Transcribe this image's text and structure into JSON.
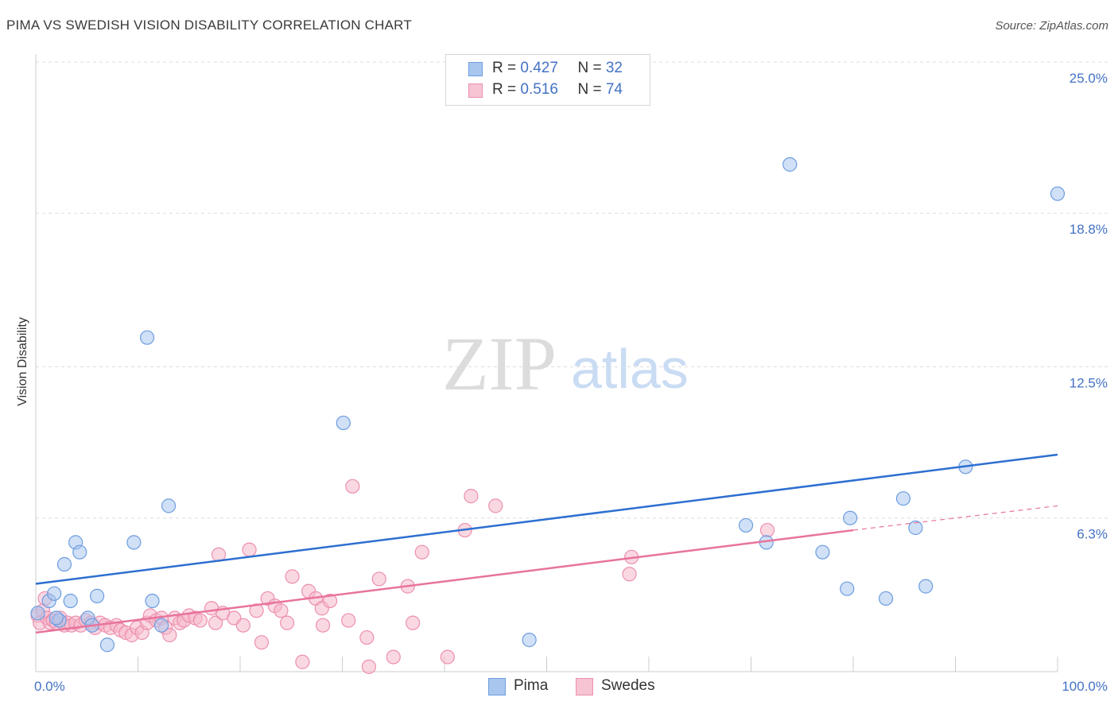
{
  "title": "PIMA VS SWEDISH VISION DISABILITY CORRELATION CHART",
  "source": "Source: ZipAtlas.com",
  "watermark": {
    "zip": "ZIP",
    "atlas": "atlas"
  },
  "legend": {
    "pima": {
      "r_label": "R = ",
      "r_value": "0.427",
      "n_label": "N = ",
      "n_value": "32"
    },
    "swedes": {
      "r_label": "R = ",
      "r_value": "0.516",
      "n_label": "N = ",
      "n_value": "74"
    }
  },
  "bottom_legend": {
    "pima": "Pima",
    "swedes": "Swedes"
  },
  "colors": {
    "pima_fill": "#a9c6ef",
    "pima_stroke": "#6d9de0",
    "pima_line": "#2d6fd0",
    "swedes_fill": "#f6b8cb",
    "swedes_stroke": "#ec8fae",
    "swedes_line": "#e8739b",
    "tick_text": "#4472c4",
    "grid": "#dddddd"
  },
  "chart_data": {
    "type": "scatter",
    "title": "PIMA VS SWEDISH VISION DISABILITY CORRELATION CHART",
    "xlabel": "",
    "ylabel": "Vision Disability",
    "xlim": [
      0,
      100
    ],
    "ylim": [
      0,
      25.0
    ],
    "x_ticks": [
      "0.0%",
      "100.0%"
    ],
    "y_ticks": [
      {
        "value": 6.3,
        "label": "6.3%"
      },
      {
        "value": 12.5,
        "label": "12.5%"
      },
      {
        "value": 18.8,
        "label": "18.8%"
      },
      {
        "value": 25.0,
        "label": "25.0%"
      }
    ],
    "grid": true,
    "series": [
      {
        "name": "Pima",
        "trend": {
          "x": [
            0,
            100
          ],
          "y": [
            3.6,
            8.9
          ]
        },
        "points": [
          [
            0.2,
            2.4
          ],
          [
            1.3,
            2.9
          ],
          [
            1.8,
            3.2
          ],
          [
            2.3,
            2.1
          ],
          [
            3.4,
            2.9
          ],
          [
            2.8,
            4.4
          ],
          [
            3.9,
            5.3
          ],
          [
            4.3,
            4.9
          ],
          [
            5.1,
            2.2
          ],
          [
            5.5,
            1.9
          ],
          [
            6.0,
            3.1
          ],
          [
            7.0,
            1.1
          ],
          [
            9.6,
            5.3
          ],
          [
            10.9,
            13.7
          ],
          [
            11.4,
            2.9
          ],
          [
            12.3,
            1.9
          ],
          [
            13.0,
            6.8
          ],
          [
            30.1,
            10.2
          ],
          [
            48.3,
            1.3
          ],
          [
            69.5,
            6.0
          ],
          [
            71.5,
            5.3
          ],
          [
            73.8,
            20.8
          ],
          [
            77.0,
            4.9
          ],
          [
            79.4,
            3.4
          ],
          [
            79.7,
            6.3
          ],
          [
            83.2,
            3.0
          ],
          [
            84.9,
            7.1
          ],
          [
            86.1,
            5.9
          ],
          [
            87.1,
            3.5
          ],
          [
            91.0,
            8.4
          ],
          [
            100.0,
            19.6
          ],
          [
            2.0,
            2.2
          ]
        ]
      },
      {
        "name": "Swedes",
        "trend": {
          "x": [
            0,
            80
          ],
          "y": [
            1.6,
            5.8
          ]
        },
        "trend_extension": {
          "x": [
            80,
            100
          ],
          "y": [
            5.8,
            6.8
          ]
        },
        "points": [
          [
            0.2,
            2.3
          ],
          [
            0.4,
            2.0
          ],
          [
            0.7,
            2.5
          ],
          [
            0.9,
            3.0
          ],
          [
            1.1,
            2.2
          ],
          [
            1.4,
            2.0
          ],
          [
            1.7,
            2.1
          ],
          [
            2.0,
            2.0
          ],
          [
            2.4,
            2.2
          ],
          [
            2.8,
            1.9
          ],
          [
            3.1,
            2.0
          ],
          [
            3.5,
            1.9
          ],
          [
            3.9,
            2.0
          ],
          [
            4.4,
            1.9
          ],
          [
            4.9,
            2.1
          ],
          [
            5.4,
            2.0
          ],
          [
            5.8,
            1.8
          ],
          [
            6.3,
            2.0
          ],
          [
            6.8,
            1.9
          ],
          [
            7.3,
            1.8
          ],
          [
            7.9,
            1.9
          ],
          [
            8.3,
            1.7
          ],
          [
            8.8,
            1.6
          ],
          [
            9.4,
            1.5
          ],
          [
            9.9,
            1.8
          ],
          [
            10.4,
            1.6
          ],
          [
            10.9,
            2.0
          ],
          [
            11.2,
            2.3
          ],
          [
            11.8,
            2.1
          ],
          [
            12.3,
            2.2
          ],
          [
            12.7,
            1.8
          ],
          [
            13.1,
            1.5
          ],
          [
            13.6,
            2.2
          ],
          [
            14.1,
            2.0
          ],
          [
            14.5,
            2.1
          ],
          [
            15.0,
            2.3
          ],
          [
            15.6,
            2.2
          ],
          [
            16.1,
            2.1
          ],
          [
            17.2,
            2.6
          ],
          [
            17.6,
            2.0
          ],
          [
            17.9,
            4.8
          ],
          [
            18.3,
            2.4
          ],
          [
            19.4,
            2.2
          ],
          [
            20.3,
            1.9
          ],
          [
            20.9,
            5.0
          ],
          [
            21.6,
            2.5
          ],
          [
            22.1,
            1.2
          ],
          [
            22.7,
            3.0
          ],
          [
            23.4,
            2.7
          ],
          [
            24.0,
            2.5
          ],
          [
            24.6,
            2.0
          ],
          [
            25.1,
            3.9
          ],
          [
            26.1,
            0.4
          ],
          [
            26.7,
            3.3
          ],
          [
            27.4,
            3.0
          ],
          [
            28.0,
            2.6
          ],
          [
            28.8,
            2.9
          ],
          [
            28.1,
            1.9
          ],
          [
            30.6,
            2.1
          ],
          [
            31.0,
            7.6
          ],
          [
            32.4,
            1.4
          ],
          [
            32.6,
            0.2
          ],
          [
            33.6,
            3.8
          ],
          [
            35.0,
            0.6
          ],
          [
            36.4,
            3.5
          ],
          [
            36.9,
            2.0
          ],
          [
            37.8,
            4.9
          ],
          [
            40.3,
            0.6
          ],
          [
            42.0,
            5.8
          ],
          [
            42.6,
            7.2
          ],
          [
            45.0,
            6.8
          ],
          [
            58.1,
            4.0
          ],
          [
            58.3,
            4.7
          ],
          [
            71.6,
            5.8
          ]
        ]
      }
    ]
  }
}
